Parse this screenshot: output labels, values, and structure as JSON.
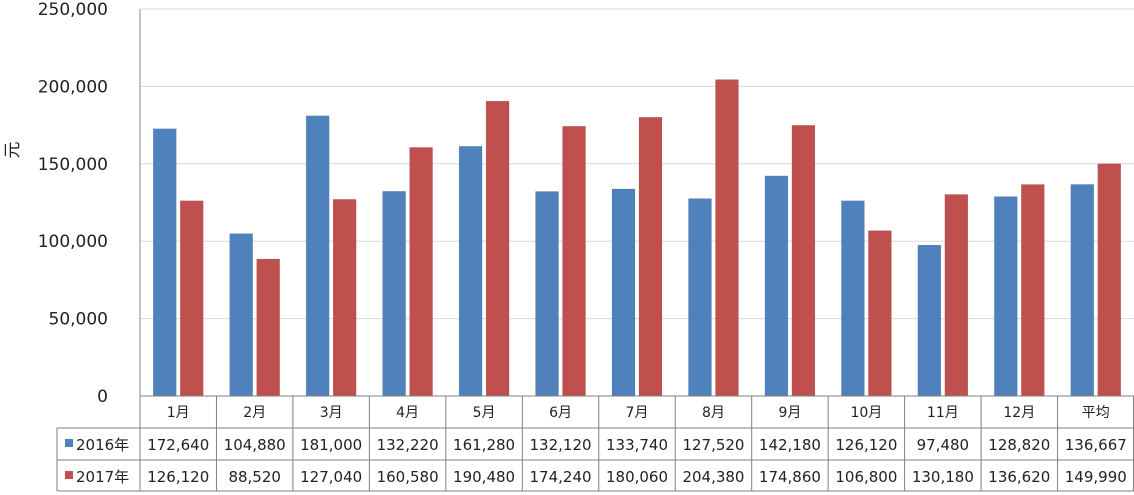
{
  "chart_data": {
    "type": "bar",
    "categories": [
      "1月",
      "2月",
      "3月",
      "4月",
      "5月",
      "6月",
      "7月",
      "8月",
      "9月",
      "10月",
      "11月",
      "12月",
      "平均"
    ],
    "series": [
      {
        "name": "2016年",
        "color": "#4f81bd",
        "values": [
          172640,
          104880,
          181000,
          132220,
          161280,
          132120,
          133740,
          127520,
          142180,
          126120,
          97480,
          128820,
          136667
        ],
        "labels": [
          "172,640",
          "104,880",
          "181,000",
          "132,220",
          "161,280",
          "132,120",
          "133,740",
          "127,520",
          "142,180",
          "126,120",
          "97,480",
          "128,820",
          "136,667"
        ]
      },
      {
        "name": "2017年",
        "color": "#c0504d",
        "values": [
          126120,
          88520,
          127040,
          160580,
          190480,
          174240,
          180060,
          204380,
          174860,
          106800,
          130180,
          136620,
          149990
        ],
        "labels": [
          "126,120",
          "88,520",
          "127,040",
          "160,580",
          "190,480",
          "174,240",
          "180,060",
          "204,380",
          "174,860",
          "106,800",
          "130,180",
          "136,620",
          "149,990"
        ]
      }
    ],
    "ylabel": "元",
    "ylim": [
      0,
      250000
    ],
    "yticks": [
      0,
      50000,
      100000,
      150000,
      200000,
      250000
    ],
    "ytick_labels": [
      "0",
      "50,000",
      "100,000",
      "150,000",
      "200,000",
      "250,000"
    ],
    "grid": true,
    "legend": "data-table"
  }
}
